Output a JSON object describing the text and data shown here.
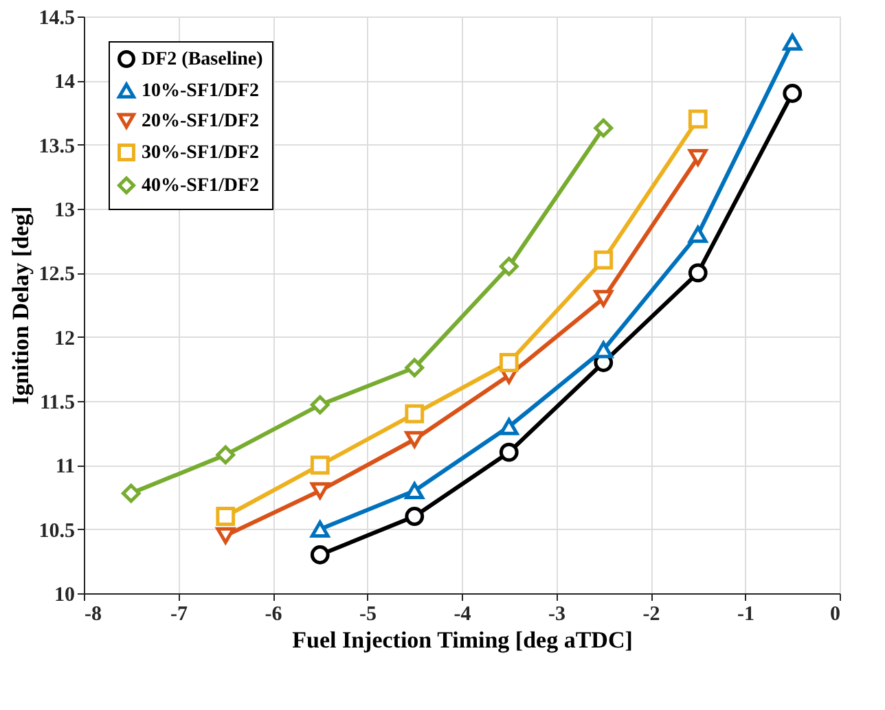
{
  "chart_data": {
    "type": "line",
    "xlabel": "Fuel Injection Timing [deg aTDC]",
    "ylabel": "Ignition Delay [deg]",
    "xlim": [
      -8,
      0
    ],
    "xticks": [
      -8,
      -7,
      -6,
      -5,
      -4,
      -3,
      -2,
      -1,
      0
    ],
    "ylim": [
      10,
      14.5
    ],
    "yticks": [
      10,
      10.5,
      11,
      11.5,
      12,
      12.5,
      13,
      13.5,
      14,
      14.5
    ],
    "grid": true,
    "legend": "top left",
    "line_style": "solid",
    "series": [
      {
        "name": "DF2 (Baseline)",
        "color": "#000000",
        "marker": "circle",
        "x": [
          -5.5,
          -4.5,
          -3.5,
          -2.5,
          -1.5,
          -0.5
        ],
        "values": [
          10.3,
          10.6,
          11.1,
          11.8,
          12.5,
          13.9
        ]
      },
      {
        "name": "10%-SF1/DF2",
        "color": "#0072bd",
        "marker": "triangle",
        "x": [
          -5.5,
          -4.5,
          -3.5,
          -2.5,
          -1.5,
          -0.5
        ],
        "values": [
          10.5,
          10.8,
          11.3,
          11.9,
          12.8,
          14.3
        ]
      },
      {
        "name": "20%-SF1/DF2",
        "color": "#d95319",
        "marker": "triangle-down",
        "x": [
          -6.5,
          -5.5,
          -4.5,
          -3.5,
          -2.5,
          -1.5
        ],
        "values": [
          10.45,
          10.8,
          11.2,
          11.7,
          12.3,
          13.4
        ]
      },
      {
        "name": "30%-SF1/DF2",
        "color": "#edb120",
        "marker": "square",
        "x": [
          -6.5,
          -5.5,
          -4.5,
          -3.5,
          -2.5,
          -1.5
        ],
        "values": [
          10.6,
          11.0,
          11.4,
          11.8,
          12.6,
          13.7
        ]
      },
      {
        "name": "40%-SF1/DF2",
        "color": "#77ac30",
        "marker": "diamond",
        "x": [
          -7.5,
          -6.5,
          -5.5,
          -4.5,
          -3.5,
          -2.5
        ],
        "values": [
          10.78,
          11.08,
          11.47,
          11.76,
          12.55,
          13.63
        ]
      }
    ]
  }
}
